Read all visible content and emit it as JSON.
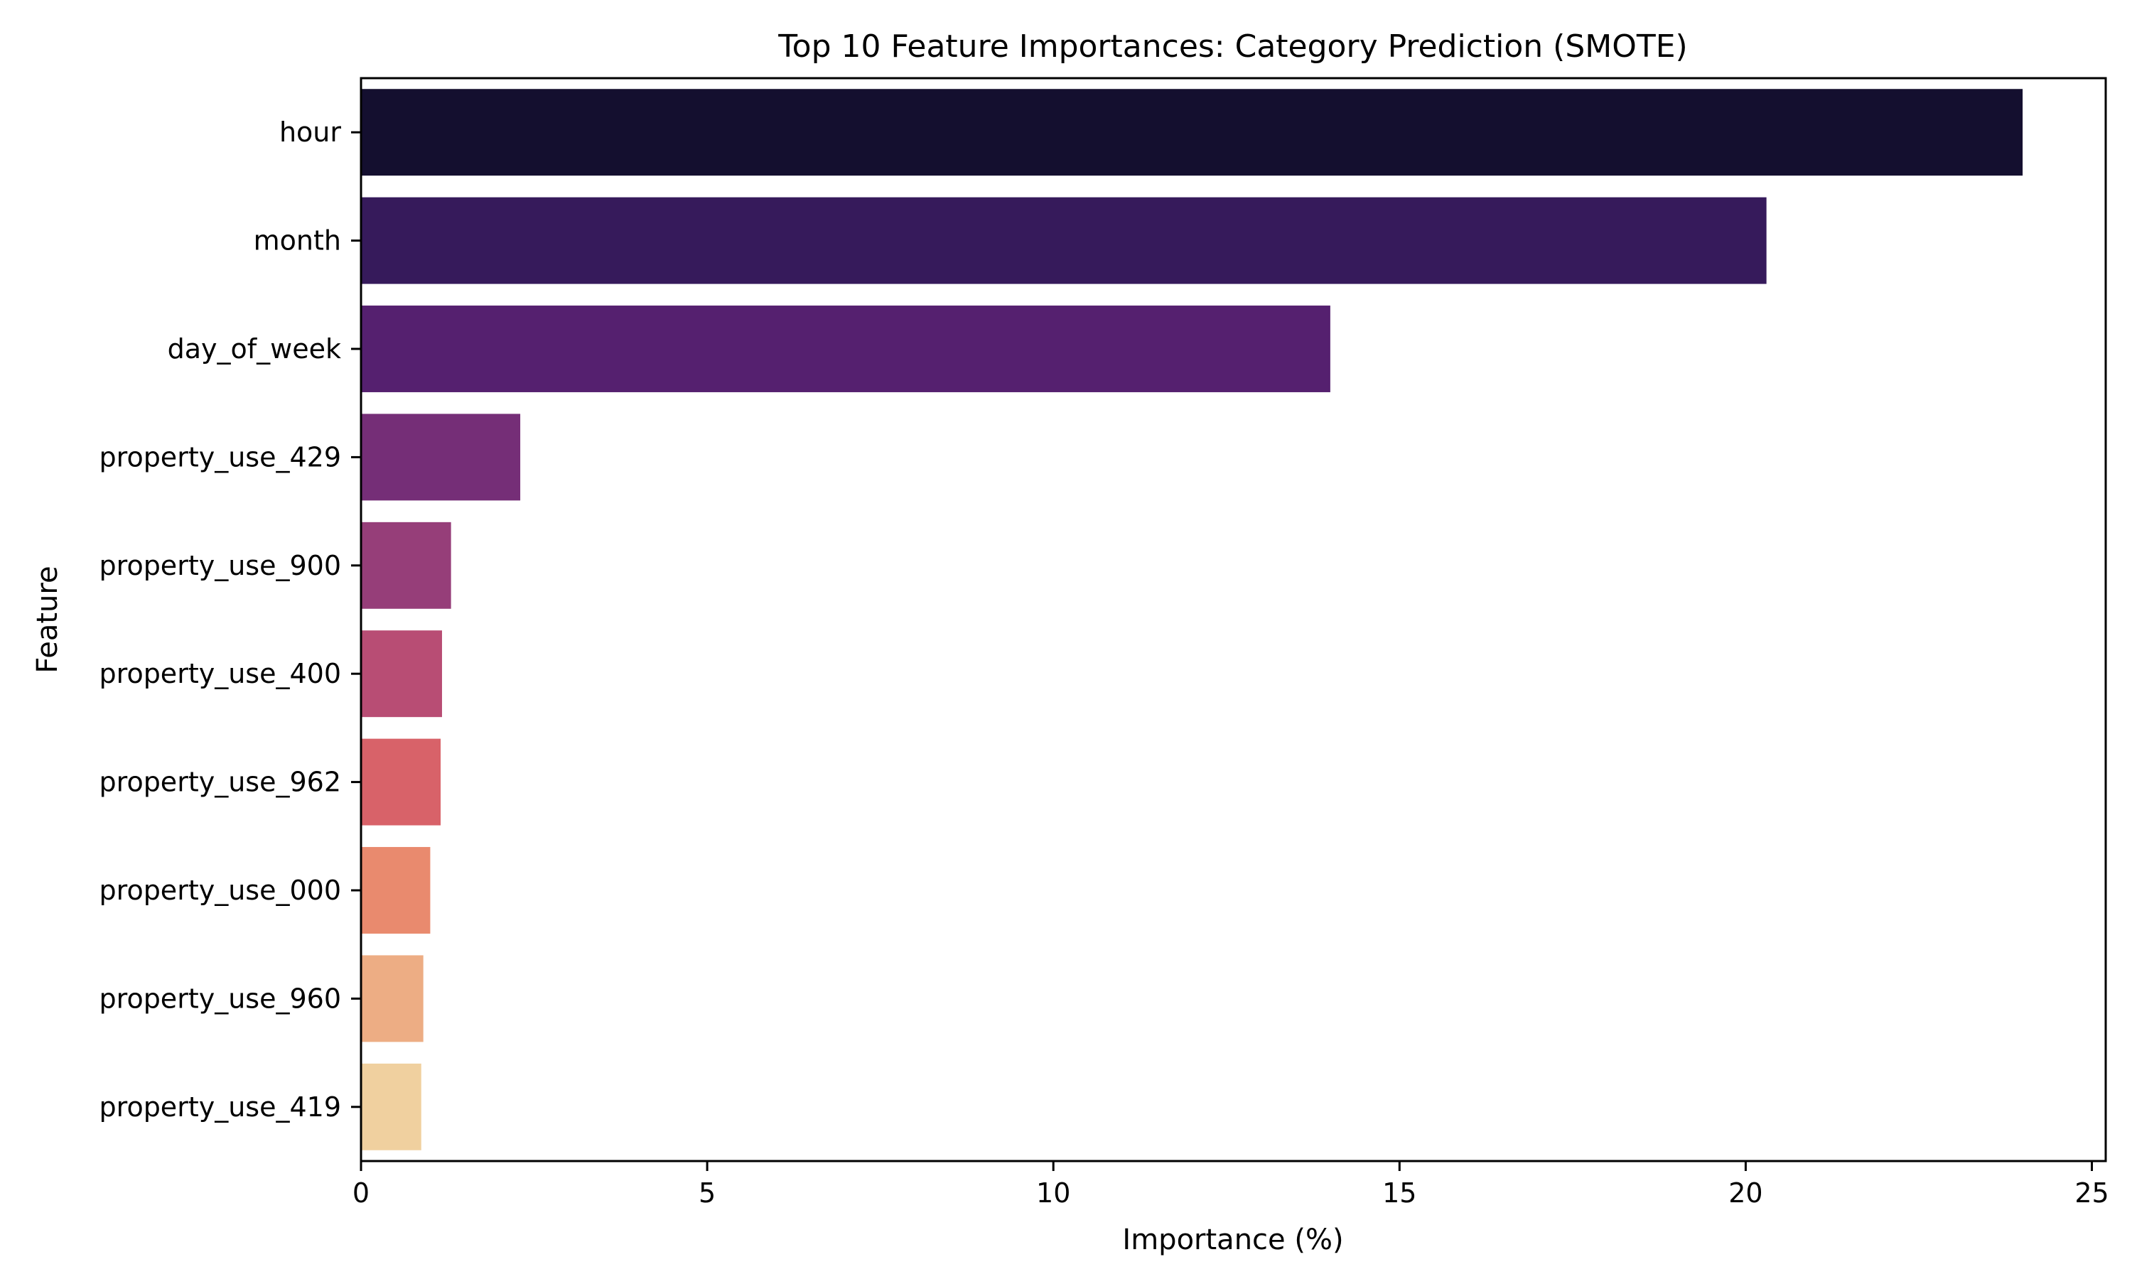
{
  "chart_data": {
    "type": "bar",
    "orientation": "horizontal",
    "title": "Top 10 Feature Importances: Category Prediction (SMOTE)",
    "xlabel": "Importance (%)",
    "ylabel": "Feature",
    "categories": [
      "hour",
      "month",
      "day_of_week",
      "property_use_429",
      "property_use_900",
      "property_use_400",
      "property_use_962",
      "property_use_000",
      "property_use_960",
      "property_use_419"
    ],
    "values": [
      24.0,
      20.3,
      14.0,
      2.3,
      1.3,
      1.17,
      1.15,
      1.0,
      0.9,
      0.87
    ],
    "xlim": [
      0,
      25.2
    ],
    "xticks": [
      0,
      5,
      10,
      15,
      20,
      25
    ],
    "grid": false,
    "legend": "none",
    "colors": [
      "#140f2f",
      "#361a5b",
      "#55206f",
      "#752e77",
      "#963e79",
      "#b84d74",
      "#d86269",
      "#e98a6e",
      "#edad84",
      "#f0d09f"
    ]
  }
}
